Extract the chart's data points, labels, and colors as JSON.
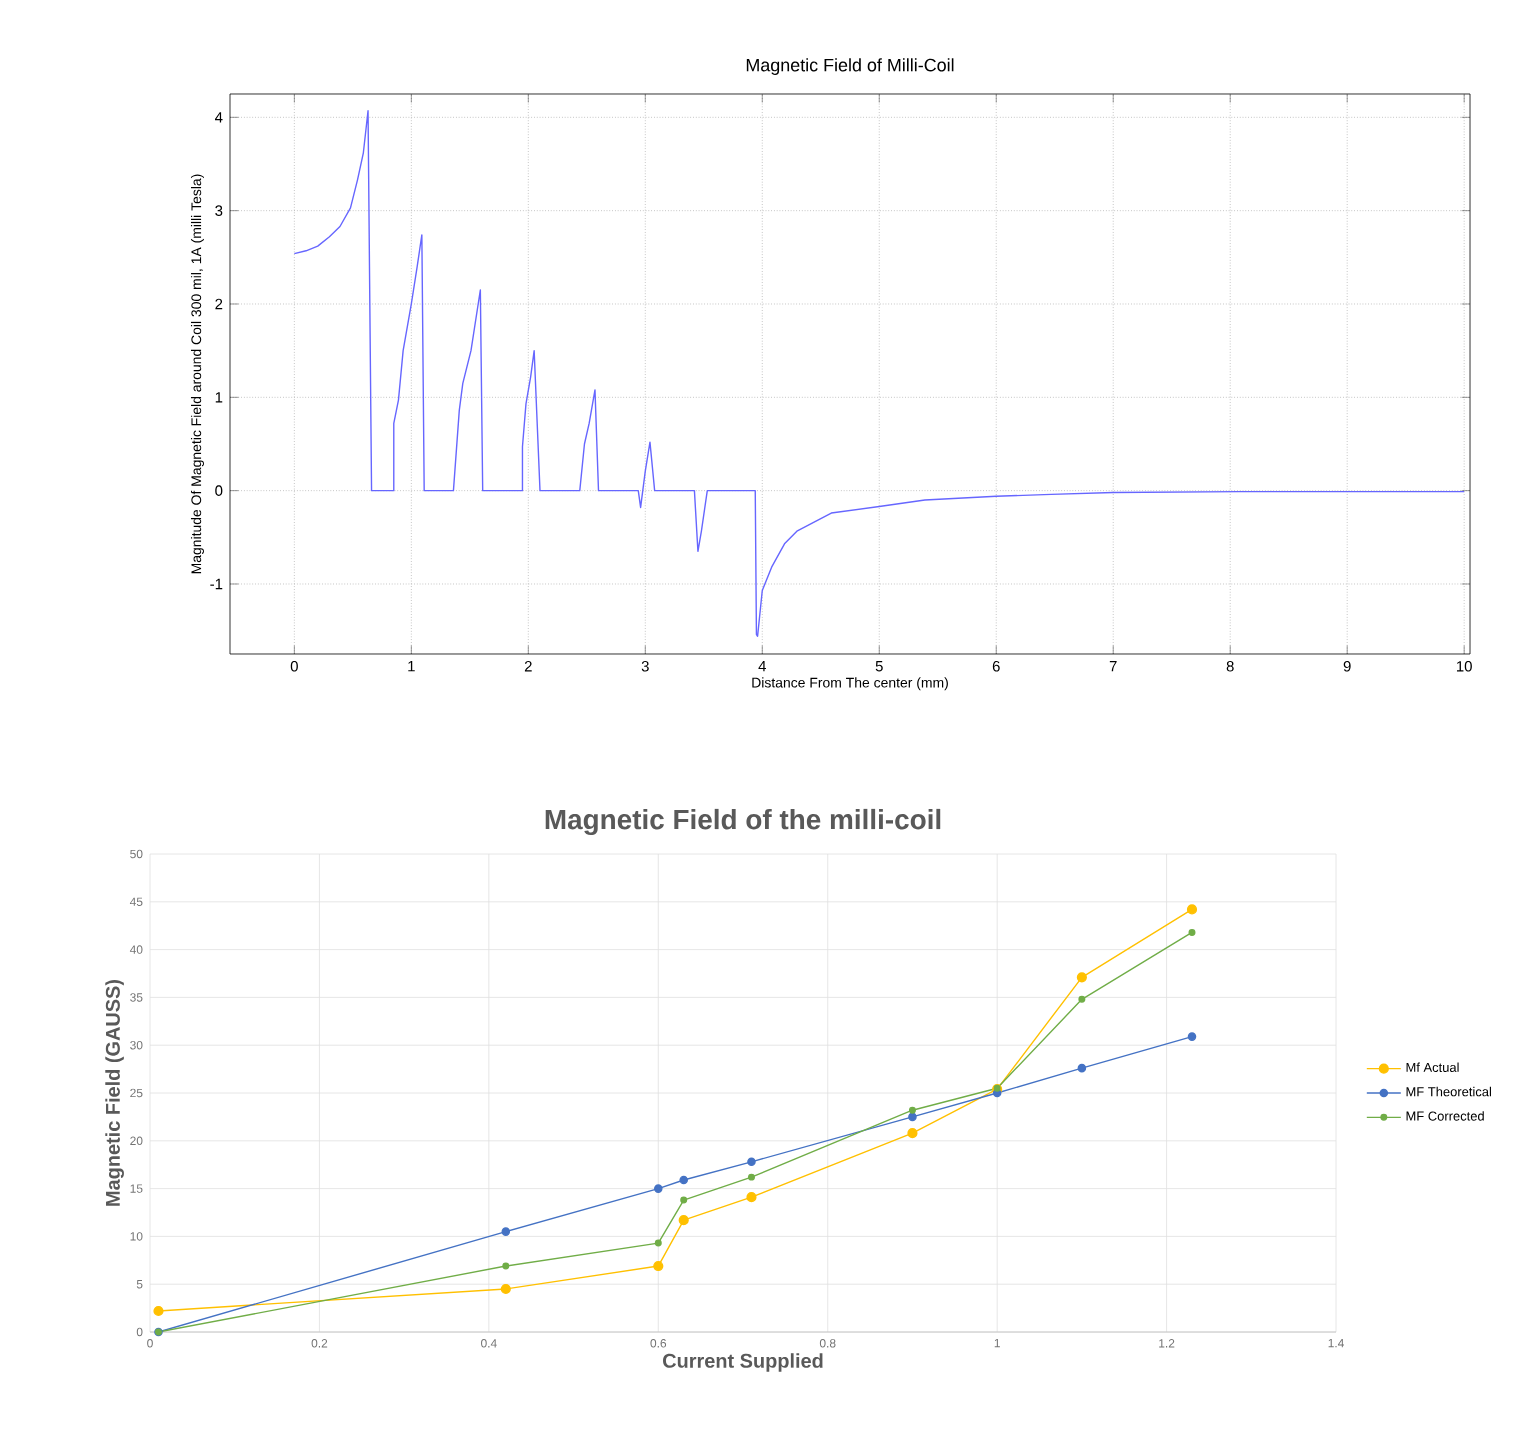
{
  "chart_data": [
    {
      "type": "line",
      "title": "Magnetic Field of Milli-Coil",
      "xlabel": "Distance From The center (mm)",
      "ylabel": "Magnitude Of Magnetic Field around Coil 300 mil, 1A (milli Tesla)",
      "xlim": [
        -0.55,
        10.05
      ],
      "ylim": [
        -1.75,
        4.25
      ],
      "xticks": [
        0,
        1,
        2,
        3,
        4,
        5,
        6,
        7,
        8,
        9,
        10
      ],
      "yticks": [
        -1,
        0,
        1,
        2,
        3,
        4
      ],
      "grid": true,
      "marker": "none",
      "legend": false,
      "series": [
        {
          "color": "#6666ff",
          "x": [
            0,
            0.1,
            0.2,
            0.3,
            0.39,
            0.48,
            0.54,
            0.59,
            0.63,
            0.66,
            0.85,
            0.85,
            0.89,
            0.93,
            1.0,
            1.05,
            1.09,
            1.11,
            1.36,
            1.41,
            1.44,
            1.51,
            1.59,
            1.61,
            1.95,
            1.95,
            1.98,
            2.02,
            2.05,
            2.1,
            2.44,
            2.48,
            2.52,
            2.57,
            2.6,
            2.94,
            2.96,
            3.0,
            3.04,
            3.08,
            3.42,
            3.45,
            3.48,
            3.53,
            3.94,
            3.95,
            3.96,
            4.0,
            4.08,
            4.19,
            4.3,
            4.59,
            5.0,
            5.39,
            6.0,
            6.47,
            7.0,
            8.08,
            10.0
          ],
          "values": [
            2.54,
            2.57,
            2.62,
            2.72,
            2.83,
            3.03,
            3.33,
            3.62,
            4.07,
            0,
            0,
            0.72,
            0.97,
            1.5,
            2.0,
            2.4,
            2.74,
            0,
            0,
            0.86,
            1.15,
            1.5,
            2.15,
            0,
            0,
            0.47,
            0.93,
            1.22,
            1.5,
            0,
            0,
            0.5,
            0.72,
            1.08,
            0,
            0,
            -0.18,
            0.21,
            0.52,
            0,
            0,
            -0.65,
            -0.43,
            0,
            0,
            -1.54,
            -1.56,
            -1.07,
            -0.82,
            -0.57,
            -0.43,
            -0.24,
            -0.17,
            -0.1,
            -0.06,
            -0.04,
            -0.02,
            -0.01,
            -0.01
          ]
        }
      ]
    },
    {
      "type": "line",
      "title": "Magnetic Field of the milli-coil",
      "xlabel": "Current Supplied",
      "ylabel": "Magnetic Field (GAUSS)",
      "xlim": [
        0,
        1.4
      ],
      "ylim": [
        0,
        50
      ],
      "xticks": [
        0,
        0.2,
        0.4,
        0.6,
        0.8,
        1,
        1.2,
        1.4
      ],
      "yticks": [
        0,
        5,
        10,
        15,
        20,
        25,
        30,
        35,
        40,
        45,
        50
      ],
      "grid": true,
      "marker": "circle",
      "legend": "right",
      "series": [
        {
          "name": "Mf Actual",
          "color": "#ffc000",
          "x": [
            0.01,
            0.42,
            0.6,
            0.63,
            0.71,
            0.9,
            1.0,
            1.1,
            1.23
          ],
          "values": [
            2.2,
            4.5,
            6.9,
            11.7,
            14.1,
            20.8,
            25.4,
            37.1,
            44.2
          ]
        },
        {
          "name": "MF Theoretical",
          "color": "#4472c4",
          "x": [
            0.01,
            0.42,
            0.6,
            0.63,
            0.71,
            0.9,
            1.0,
            1.1,
            1.23
          ],
          "values": [
            0,
            10.5,
            15.0,
            15.9,
            17.8,
            22.5,
            25.0,
            27.6,
            30.9
          ]
        },
        {
          "name": "MF Corrected",
          "color": "#70ad47",
          "x": [
            0.01,
            0.42,
            0.6,
            0.63,
            0.71,
            0.9,
            1.0,
            1.1,
            1.23
          ],
          "values": [
            0,
            6.9,
            9.3,
            13.8,
            16.2,
            23.2,
            25.5,
            34.8,
            41.8
          ]
        }
      ]
    }
  ]
}
